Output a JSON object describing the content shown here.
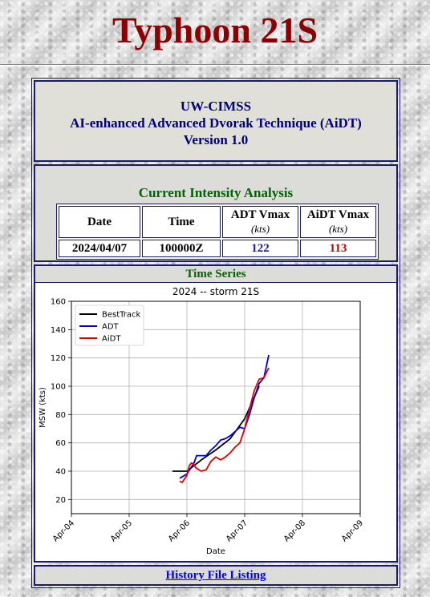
{
  "page_title": "Typhoon 21S",
  "header": {
    "line1": "UW-CIMSS",
    "line2": "AI-enhanced Advanced Dvorak Technique (AiDT)",
    "line3": "Version 1.0"
  },
  "intensity": {
    "caption": "Current Intensity Analysis",
    "col_date": "Date",
    "col_time": "Time",
    "col_adt": "ADT Vmax",
    "col_aidt": "AiDT Vmax",
    "unit": "(kts)",
    "date": "2024/04/07",
    "time": "100000Z",
    "adt": "122",
    "aidt": "113",
    "adt_color": "#1a1aa8",
    "aidt_color": "#c00000"
  },
  "timeseries": {
    "header": "Time Series"
  },
  "history_link": "History File Listing",
  "chart_data": {
    "type": "line",
    "title": "2024 -- storm 21S",
    "xlabel": "Date",
    "ylabel": "MSW (kts)",
    "x_ticks": [
      "Apr-04",
      "Apr-05",
      "Apr-06",
      "Apr-07",
      "Apr-08",
      "Apr-09"
    ],
    "xlim": [
      "Apr-04",
      "Apr-09"
    ],
    "ylim": [
      10,
      160
    ],
    "y_ticks": [
      20,
      40,
      60,
      80,
      100,
      120,
      140,
      160
    ],
    "grid": true,
    "legend": "top-left",
    "series": [
      {
        "name": "BestTrack",
        "color": "#000000",
        "x": [
          "04-05 18:00",
          "04-06 00:00",
          "04-06 06:00",
          "04-06 12:00",
          "04-06 18:00",
          "04-07 00:00",
          "04-07 06:00"
        ],
        "y": [
          40,
          40,
          48,
          55,
          63,
          77,
          100
        ]
      },
      {
        "name": "ADT",
        "color": "#0000cc",
        "x": [
          "04-05 21:00",
          "04-06 00:00",
          "04-06 03:00",
          "04-06 04:00",
          "04-06 06:00",
          "04-06 08:00",
          "04-06 10:00",
          "04-06 12:00",
          "04-06 14:00",
          "04-06 16:00",
          "04-06 18:00",
          "04-06 20:00",
          "04-06 22:00",
          "04-07 00:00",
          "04-07 02:00",
          "04-07 04:00",
          "04-07 06:00",
          "04-07 08:00",
          "04-07 10:00"
        ],
        "y": [
          35,
          38,
          46,
          51,
          51,
          51,
          55,
          58,
          62,
          63,
          65,
          68,
          71,
          70,
          80,
          92,
          102,
          106,
          122
        ]
      },
      {
        "name": "AiDT",
        "color": "#dd0000",
        "x": [
          "04-05 21:00",
          "04-05 22:00",
          "04-06 00:00",
          "04-06 01:00",
          "04-06 02:00",
          "04-06 04:00",
          "04-06 06:00",
          "04-06 08:00",
          "04-06 10:00",
          "04-06 12:00",
          "04-06 14:00",
          "04-06 16:00",
          "04-06 18:00",
          "04-06 20:00",
          "04-06 22:00",
          "04-07 00:00",
          "04-07 02:00",
          "04-07 04:00",
          "04-07 06:00",
          "04-07 08:00",
          "04-07 10:00"
        ],
        "y": [
          33,
          32,
          37,
          44,
          46,
          42,
          40,
          41,
          47,
          50,
          48,
          50,
          53,
          57,
          60,
          70,
          84,
          97,
          105,
          106,
          113
        ]
      }
    ]
  }
}
